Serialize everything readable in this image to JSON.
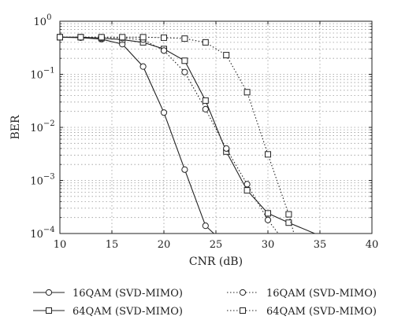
{
  "chart_data": {
    "type": "line",
    "xlabel": "CNR (dB)",
    "ylabel": "BER",
    "xlim": [
      10,
      40
    ],
    "ylim": [
      0.0001,
      1
    ],
    "yscale": "log",
    "grid": true,
    "x_ticks": [
      10,
      15,
      20,
      25,
      30,
      35,
      40
    ],
    "x_tick_labels": [
      "10",
      "15",
      "20",
      "25",
      "30",
      "35",
      "40"
    ],
    "y_ticks": [
      0.0001,
      0.001,
      0.01,
      0.1,
      1
    ],
    "y_tick_labels": [
      {
        "base": "10",
        "exp": "−4"
      },
      {
        "base": "10",
        "exp": "−3"
      },
      {
        "base": "10",
        "exp": "−2"
      },
      {
        "base": "10",
        "exp": "−1"
      },
      {
        "base": "10",
        "exp": "0"
      }
    ],
    "legend_placement": "below",
    "series": [
      {
        "name": "16QAM (SVD-MIMO)",
        "marker": "circle",
        "line": "solid",
        "points": [
          [
            10,
            0.5
          ],
          [
            12,
            0.49
          ],
          [
            14,
            0.46
          ],
          [
            16,
            0.37
          ],
          [
            18,
            0.14
          ],
          [
            20,
            0.019
          ],
          [
            22,
            0.0016
          ],
          [
            24,
            0.00014
          ]
        ],
        "line_extends_to": [
          24.8,
          0.0001
        ]
      },
      {
        "name": "64QAM (SVD-MIMO)",
        "marker": "square",
        "line": "solid",
        "points": [
          [
            10,
            0.5
          ],
          [
            12,
            0.5
          ],
          [
            14,
            0.48
          ],
          [
            16,
            0.45
          ],
          [
            18,
            0.4
          ],
          [
            20,
            0.3
          ],
          [
            22,
            0.18
          ],
          [
            24,
            0.032
          ],
          [
            26,
            0.0035
          ],
          [
            28,
            0.00065
          ],
          [
            30,
            0.00024
          ],
          [
            32,
            0.00016
          ]
        ],
        "line_extends_to": [
          34.5,
          0.0001
        ]
      },
      {
        "name": "16QAM (SVD-MIMO)",
        "marker": "circle",
        "line": "dotted",
        "points": [
          [
            10,
            0.5
          ],
          [
            12,
            0.5
          ],
          [
            14,
            0.5
          ],
          [
            16,
            0.48
          ],
          [
            18,
            0.45
          ],
          [
            20,
            0.28
          ],
          [
            22,
            0.11
          ],
          [
            24,
            0.022
          ],
          [
            26,
            0.004
          ],
          [
            28,
            0.00085
          ],
          [
            30,
            0.00018
          ]
        ],
        "line_extends_to": [
          31,
          0.0001
        ]
      },
      {
        "name": "64QAM (SVD-MIMO)",
        "marker": "square",
        "line": "dotted",
        "points": [
          [
            10,
            0.5
          ],
          [
            12,
            0.5
          ],
          [
            14,
            0.5
          ],
          [
            16,
            0.5
          ],
          [
            18,
            0.5
          ],
          [
            20,
            0.49
          ],
          [
            22,
            0.47
          ],
          [
            24,
            0.4
          ],
          [
            26,
            0.23
          ],
          [
            28,
            0.046
          ],
          [
            30,
            0.0031
          ],
          [
            32,
            0.00023
          ]
        ],
        "line_extends_to": [
          32.5,
          0.0001
        ]
      }
    ]
  },
  "colors": {
    "line": "#222222",
    "grid": "#9a9a9a",
    "background": "#ffffff"
  }
}
